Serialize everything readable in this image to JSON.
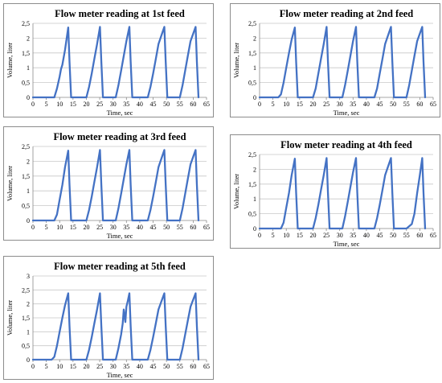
{
  "chart_data": [
    {
      "type": "line",
      "title": "Flow meter reading at 1st feed",
      "xlabel": "Time, sec",
      "ylabel": "Volume, liter",
      "xlim": [
        0,
        65
      ],
      "ylim": [
        0,
        2.5
      ],
      "x_ticks": [
        "0",
        "5",
        "10",
        "15",
        "20",
        "25",
        "30",
        "35",
        "40",
        "45",
        "50",
        "55",
        "60",
        "65"
      ],
      "y_ticks": [
        "0",
        "0,5",
        "1",
        "1,5",
        "2",
        "2,5"
      ],
      "grid": true,
      "series": [
        {
          "x": [
            0,
            8,
            9,
            10,
            10.5,
            11,
            12,
            13.2,
            13.7,
            14.3,
            20,
            21,
            22,
            23,
            24,
            25.1,
            25.6,
            26.2,
            31,
            32,
            33,
            34,
            35,
            36.1,
            36.6,
            37.2,
            43,
            44,
            45,
            46,
            47,
            49.2,
            49.7,
            50.3,
            55,
            56,
            57,
            58,
            59,
            60.9,
            61.4,
            62
          ],
          "y": [
            0,
            0,
            0.3,
            0.7,
            0.95,
            1.1,
            1.6,
            2.36,
            1.2,
            0,
            0,
            0.35,
            0.8,
            1.3,
            1.8,
            2.38,
            1.2,
            0,
            0,
            0.4,
            0.9,
            1.4,
            1.9,
            2.38,
            1.2,
            0,
            0,
            0.35,
            0.8,
            1.3,
            1.8,
            2.38,
            1.2,
            0,
            0,
            0.4,
            0.9,
            1.4,
            1.9,
            2.38,
            1.2,
            0
          ]
        }
      ]
    },
    {
      "type": "line",
      "title": "Flow meter reading at 2nd feed",
      "xlabel": "Time, sec",
      "ylabel": "Volume, liter",
      "xlim": [
        0,
        65
      ],
      "ylim": [
        0,
        2.5
      ],
      "x_ticks": [
        "0",
        "5",
        "10",
        "15",
        "20",
        "25",
        "30",
        "35",
        "40",
        "45",
        "50",
        "55",
        "60",
        "65"
      ],
      "y_ticks": [
        "0",
        "0,5",
        "1",
        "1,5",
        "2",
        "2,5"
      ],
      "grid": true,
      "series": [
        {
          "x": [
            0,
            7,
            8,
            9,
            10,
            11,
            12,
            13.2,
            13.7,
            14.3,
            20,
            21,
            22,
            23,
            24,
            25.1,
            25.6,
            26.2,
            31,
            32,
            33,
            34,
            35,
            36.1,
            36.6,
            37.2,
            43,
            44,
            45,
            46,
            47,
            49.2,
            49.7,
            50.3,
            55,
            56,
            57,
            58,
            59,
            60.9,
            61.4,
            62
          ],
          "y": [
            0,
            0,
            0.1,
            0.5,
            1.0,
            1.5,
            1.95,
            2.36,
            1.2,
            0,
            0,
            0.3,
            0.8,
            1.3,
            1.8,
            2.38,
            1.2,
            0,
            0,
            0.4,
            0.9,
            1.4,
            1.9,
            2.38,
            1.2,
            0,
            0,
            0.3,
            0.8,
            1.3,
            1.8,
            2.38,
            1.2,
            0,
            0,
            0.4,
            0.9,
            1.4,
            1.9,
            2.38,
            1.2,
            0
          ]
        }
      ]
    },
    {
      "type": "line",
      "title": "Flow meter reading at 3rd feed",
      "xlabel": "Time, sec",
      "ylabel": "Volume, liter",
      "xlim": [
        0,
        65
      ],
      "ylim": [
        0,
        2.5
      ],
      "x_ticks": [
        "0",
        "5",
        "10",
        "15",
        "20",
        "25",
        "30",
        "35",
        "40",
        "45",
        "50",
        "55",
        "60",
        "65"
      ],
      "y_ticks": [
        "0",
        "0,5",
        "1",
        "1,5",
        "2",
        "2,5"
      ],
      "grid": true,
      "series": [
        {
          "x": [
            0,
            8,
            9,
            10,
            11,
            12,
            13.2,
            13.7,
            14.3,
            20,
            21,
            22,
            23,
            24,
            25.1,
            25.6,
            26.2,
            31,
            32,
            33,
            34,
            35,
            36.1,
            36.6,
            37.2,
            43,
            44,
            45,
            46,
            47,
            49.2,
            49.7,
            50.3,
            55,
            56,
            57,
            58,
            59,
            60.9,
            61.4,
            62
          ],
          "y": [
            0,
            0,
            0.2,
            0.7,
            1.2,
            1.8,
            2.36,
            1.2,
            0,
            0,
            0.35,
            0.8,
            1.3,
            1.8,
            2.38,
            1.2,
            0,
            0,
            0.4,
            0.9,
            1.4,
            1.9,
            2.38,
            1.2,
            0,
            0,
            0.35,
            0.8,
            1.3,
            1.8,
            2.38,
            1.2,
            0,
            0,
            0.4,
            0.9,
            1.4,
            1.9,
            2.38,
            1.2,
            0
          ]
        }
      ]
    },
    {
      "type": "line",
      "title": "Flow meter reading at 4th feed",
      "xlabel": "Time, sec",
      "ylabel": "Volume, liter",
      "xlim": [
        0,
        65
      ],
      "ylim": [
        0,
        2.5
      ],
      "x_ticks": [
        "0",
        "5",
        "10",
        "15",
        "20",
        "25",
        "30",
        "35",
        "40",
        "45",
        "50",
        "55",
        "60",
        "65"
      ],
      "y_ticks": [
        "0",
        "0,5",
        "1",
        "1,5",
        "2",
        "2,5"
      ],
      "grid": true,
      "series": [
        {
          "x": [
            0,
            8,
            9,
            10,
            11,
            12,
            13.2,
            13.7,
            14.3,
            20,
            21,
            22,
            23,
            24,
            25.1,
            25.6,
            26.2,
            31,
            32,
            33,
            34,
            35,
            36.1,
            36.6,
            37.2,
            43,
            44,
            45,
            46,
            47,
            49.2,
            49.7,
            50.3,
            55,
            57,
            58,
            59,
            60,
            60.9,
            61.4,
            62
          ],
          "y": [
            0,
            0,
            0.2,
            0.7,
            1.2,
            1.8,
            2.36,
            1.2,
            0,
            0,
            0.35,
            0.8,
            1.3,
            1.8,
            2.38,
            1.2,
            0,
            0,
            0.4,
            0.9,
            1.4,
            1.9,
            2.38,
            1.2,
            0,
            0,
            0.35,
            0.8,
            1.3,
            1.8,
            2.38,
            1.2,
            0,
            0,
            0.15,
            0.5,
            1.2,
            1.8,
            2.38,
            1.2,
            0
          ]
        }
      ]
    },
    {
      "type": "line",
      "title": "Flow meter reading at 5th feed",
      "xlabel": "Time, sec",
      "ylabel": "Volume, liter",
      "xlim": [
        0,
        65
      ],
      "ylim": [
        0,
        3
      ],
      "x_ticks": [
        "0",
        "5",
        "10",
        "15",
        "20",
        "25",
        "30",
        "35",
        "40",
        "45",
        "50",
        "55",
        "60",
        "65"
      ],
      "y_ticks": [
        "0",
        "0,5",
        "1",
        "1,5",
        "2",
        "2,5",
        "3"
      ],
      "grid": true,
      "series": [
        {
          "x": [
            0,
            7,
            8,
            9,
            10,
            11,
            12,
            13.2,
            13.7,
            14.3,
            20,
            21,
            22,
            23,
            24,
            25.1,
            25.6,
            26.2,
            31,
            32,
            33,
            33.6,
            34,
            34.6,
            35,
            35.5,
            36.1,
            36.6,
            37.2,
            43,
            44,
            45,
            46,
            47,
            49.2,
            49.7,
            50.3,
            55,
            56,
            57,
            58,
            59,
            60.9,
            61.4,
            62
          ],
          "y": [
            0,
            0,
            0.1,
            0.5,
            1.0,
            1.5,
            1.95,
            2.38,
            1.2,
            0,
            0,
            0.35,
            0.8,
            1.3,
            1.8,
            2.38,
            1.2,
            0,
            0,
            0.4,
            0.9,
            1.3,
            1.8,
            1.35,
            1.9,
            2.1,
            2.38,
            1.2,
            0,
            0,
            0.35,
            0.8,
            1.3,
            1.8,
            2.38,
            1.2,
            0,
            0,
            0.4,
            0.9,
            1.4,
            1.9,
            2.38,
            1.2,
            0
          ]
        }
      ]
    }
  ]
}
